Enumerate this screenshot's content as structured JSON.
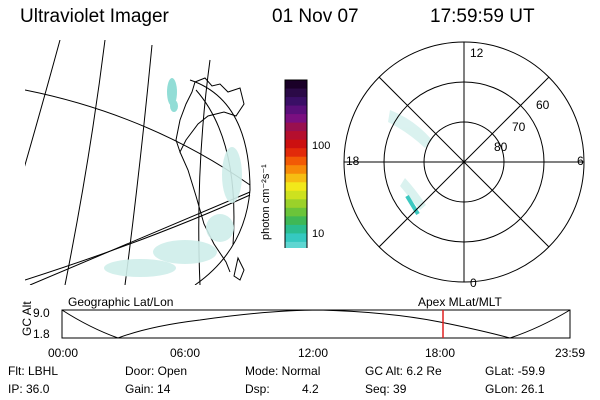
{
  "header": {
    "title": "Ultraviolet Imager",
    "date": "01 Nov 07",
    "time": "17:59:59 UT"
  },
  "colorbar": {
    "unit_label": "photon cm⁻²s⁻¹",
    "ticks": [
      "100",
      "10"
    ],
    "colors": [
      "#1a0028",
      "#2b0a47",
      "#3a0f66",
      "#5a0f7a",
      "#7a0f80",
      "#99104f",
      "#b50f2e",
      "#cc1010",
      "#e22a0a",
      "#f25a05",
      "#f78a08",
      "#f6bd12",
      "#f2e81a",
      "#cde11f",
      "#9bd12a",
      "#6bc43a",
      "#3fb856",
      "#2bbd8f",
      "#35c9c0",
      "#5ed6d1",
      "#98e3df",
      "#c7efec",
      "#e6f6f5"
    ]
  },
  "polar_plot": {
    "mlt_labels": {
      "top": "12",
      "left": "18",
      "right": "6",
      "bottom": "0"
    },
    "lat_labels": [
      "60",
      "70",
      "80"
    ]
  },
  "timeline": {
    "left_label": "Geographic Lat/Lon",
    "right_label": "Apex MLat/MLT",
    "axis_title": "GC Alt",
    "y_ticks": [
      "9.0",
      "1.8"
    ],
    "x_ticks": [
      "00:00",
      "06:00",
      "12:00",
      "18:00",
      "23:59"
    ],
    "current_time_fraction": 0.75,
    "marker_color": "#e02020"
  },
  "info": {
    "flt": "Flt: LBHL",
    "door": "Door: Open",
    "mode": "Mode: Normal",
    "gc_alt": "GC Alt: 6.2 Re",
    "glat": "GLat: -59.9",
    "ip": "IP: 36.0",
    "gain": "Gain: 14",
    "dsp_label": "Dsp:",
    "dsp_value": "4.2",
    "seq": "Seq: 39",
    "glon": "GLon: 26.1"
  }
}
